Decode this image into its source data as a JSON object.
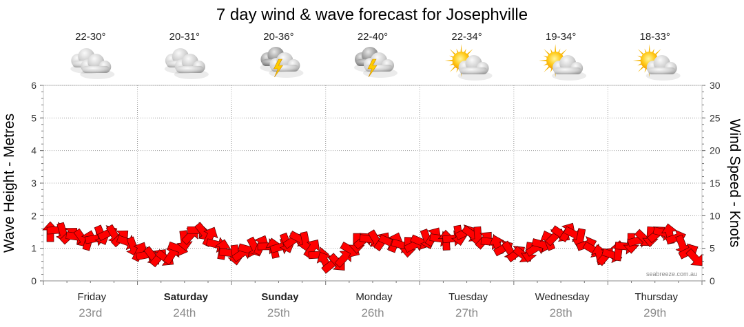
{
  "title": "7 day wind & wave forecast for Josephville",
  "left_axis_title": "Wave Height - Metres",
  "right_axis_title": "Wind Speed - Knots",
  "credit": "seabreeze.com.au",
  "colors": {
    "wind_arrow": "#ff0000",
    "arrow_outline": "#550000",
    "grid": "#9a9a9a"
  },
  "days": [
    {
      "name": "Friday",
      "date": "23rd",
      "temp": "22-30°",
      "icon": "cloudy-icon",
      "bold": false
    },
    {
      "name": "Saturday",
      "date": "24th",
      "temp": "20-31°",
      "icon": "cloudy-icon",
      "bold": true
    },
    {
      "name": "Sunday",
      "date": "25th",
      "temp": "20-36°",
      "icon": "storm-icon",
      "bold": true
    },
    {
      "name": "Monday",
      "date": "26th",
      "temp": "22-40°",
      "icon": "storm-icon",
      "bold": false
    },
    {
      "name": "Tuesday",
      "date": "27th",
      "temp": "22-34°",
      "icon": "sun-cloud-icon",
      "bold": false
    },
    {
      "name": "Wednesday",
      "date": "28th",
      "temp": "19-34°",
      "icon": "sun-cloud-icon",
      "bold": false
    },
    {
      "name": "Thursday",
      "date": "29th",
      "temp": "18-33°",
      "icon": "sun-cloud-icon",
      "bold": false
    }
  ],
  "chart_data": {
    "type": "line",
    "title": "7 day wind & wave forecast for Josephville",
    "y_left": {
      "label": "Wave Height - Metres",
      "range": [
        0,
        6
      ],
      "ticks": [
        "0",
        "1",
        "2",
        "3",
        "4",
        "5",
        "6"
      ]
    },
    "y_right": {
      "label": "Wind Speed - Knots",
      "range": [
        0,
        30
      ],
      "ticks": [
        "0",
        "5",
        "10",
        "15",
        "20",
        "25",
        "30"
      ]
    },
    "categories": [
      "Friday 23rd",
      "Saturday 24th",
      "Sunday 25th",
      "Monday 26th",
      "Tuesday 27th",
      "Wednesday 28th",
      "Thursday 29th"
    ],
    "grid": true,
    "series": [
      {
        "values_knots": [
          7.5,
          7.8,
          7.4,
          7,
          6.8,
          6.5,
          6.2,
          6.5,
          7,
          7.3,
          7.1,
          6.6,
          6,
          5.2,
          4.5,
          4,
          3.8,
          3.6,
          3.5,
          4,
          5,
          6.2,
          7,
          7.8,
          7.5,
          6.8,
          5.6,
          4.8,
          4.3,
          4,
          4.2,
          4.8,
          5.2,
          5.5,
          5.3,
          5,
          5.2,
          5.8,
          6.2,
          6.5,
          6,
          5,
          4,
          3,
          2.5,
          2.8,
          3.5,
          4.8,
          5.8,
          6.2,
          6.4,
          6.3,
          6.1,
          6,
          5.9,
          5.5,
          5.2,
          5.5,
          6,
          6.4,
          6.8,
          6.5,
          6.2,
          6.5,
          7,
          7.4,
          7.2,
          6.8,
          6.3,
          6,
          5.5,
          5,
          4.6,
          4.2,
          4,
          4.4,
          5,
          5.6,
          6.2,
          6.8,
          7.2,
          7.5,
          7.2,
          6.5,
          5.6,
          4.8,
          4,
          3.8,
          4,
          4.6,
          5.3,
          5.8,
          6.2,
          6.5,
          6.8,
          7.2,
          7.4,
          7.2,
          6.6,
          5.5,
          4.5,
          3.5
        ]
      }
    ]
  }
}
